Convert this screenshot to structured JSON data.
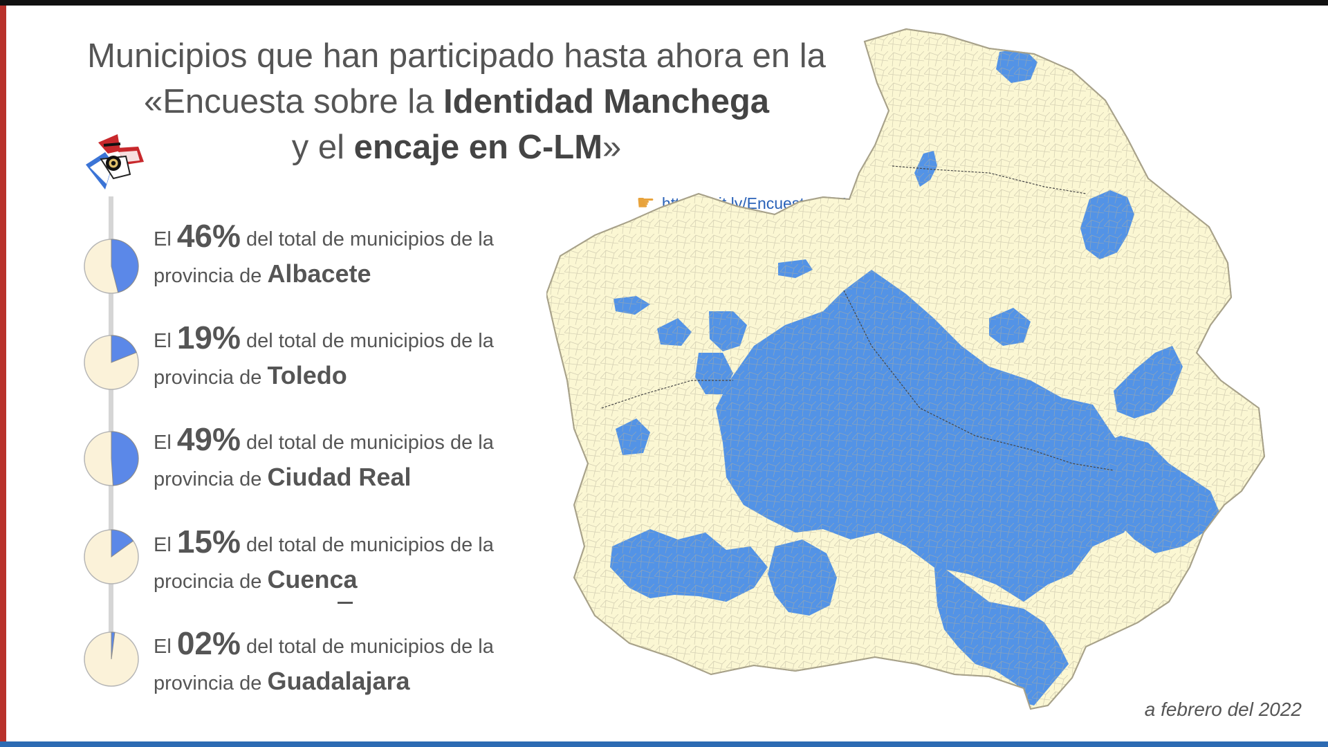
{
  "title": {
    "line1": "Municipios que han participado hasta ahora en la",
    "line2_prefix": "«Encuesta sobre la ",
    "line2_bold": "Identidad Manchega",
    "line3_prefix": "y el ",
    "line3_bold": "encaje en C-LM",
    "line3_suffix": "»"
  },
  "link": {
    "icon": "pointing-hand-icon",
    "url": "https://bit.ly/EncuestaCLM"
  },
  "stats": [
    {
      "prefix": "El ",
      "percent": "46%",
      "suffix": " del total de municipios de la",
      "line2_prefix": "provincia de ",
      "province": "Albacete",
      "fraction": 0.46
    },
    {
      "prefix": "El ",
      "percent": "19%",
      "suffix": "  del total de municipios de la",
      "line2_prefix": "provincia de ",
      "province": "Toledo",
      "fraction": 0.19
    },
    {
      "prefix": "El ",
      "percent": "49%",
      "suffix": " del total de municipios de la",
      "line2_prefix": "provincia de ",
      "province": "Ciudad Real",
      "fraction": 0.49
    },
    {
      "prefix": "El ",
      "percent": "15%",
      "suffix": " del total de municipios de la",
      "line2_prefix": "procincia de ",
      "province": "Cuenca",
      "fraction": 0.15
    },
    {
      "prefix": "El ",
      "percent": "02%",
      "suffix": " del total de municipios de la",
      "line2_prefix": "provincia de ",
      "province": "Guadalajara",
      "fraction": 0.02
    }
  ],
  "footer": {
    "date": "a febrero del 2022"
  },
  "colors": {
    "participated": "#5393e6",
    "not_participated": "#fbf7d3",
    "pie_fill": "#5b88e8",
    "pie_bg": "#fbf2d9",
    "link": "#2a62b8",
    "left_accent": "#b8312b",
    "bottom_accent": "#2d6bb3"
  }
}
